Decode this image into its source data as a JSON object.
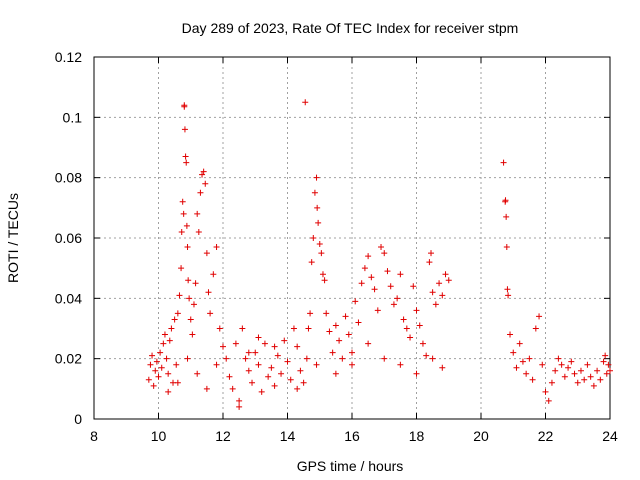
{
  "chart_data": {
    "type": "scatter",
    "title": "Day 289 of 2023, Rate Of TEC Index for receiver stpm",
    "xlabel": "GPS time / hours",
    "ylabel": "ROTI / TECUs",
    "xlim": [
      8,
      24
    ],
    "ylim": [
      0,
      0.12
    ],
    "xticks": [
      "8",
      "10",
      "12",
      "14",
      "16",
      "18",
      "20",
      "22",
      "24"
    ],
    "yticks": [
      "0",
      "0.02",
      "0.04",
      "0.06",
      "0.08",
      "0.1",
      "0.12"
    ],
    "grid": true,
    "marker": "+",
    "color": "#e00000",
    "series": [
      {
        "name": "ROTI",
        "points": [
          [
            9.7,
            0.013
          ],
          [
            9.75,
            0.018
          ],
          [
            9.8,
            0.021
          ],
          [
            9.85,
            0.011
          ],
          [
            9.9,
            0.016
          ],
          [
            9.95,
            0.019
          ],
          [
            10.0,
            0.014
          ],
          [
            10.05,
            0.022
          ],
          [
            10.1,
            0.017
          ],
          [
            10.15,
            0.025
          ],
          [
            10.2,
            0.028
          ],
          [
            10.25,
            0.02
          ],
          [
            10.3,
            0.015
          ],
          [
            10.35,
            0.026
          ],
          [
            10.4,
            0.03
          ],
          [
            10.45,
            0.012
          ],
          [
            10.5,
            0.033
          ],
          [
            10.55,
            0.018
          ],
          [
            10.6,
            0.035
          ],
          [
            10.65,
            0.041
          ],
          [
            10.7,
            0.05
          ],
          [
            10.72,
            0.062
          ],
          [
            10.75,
            0.072
          ],
          [
            10.78,
            0.068
          ],
          [
            10.8,
            0.104
          ],
          [
            10.8,
            0.1035
          ],
          [
            10.82,
            0.096
          ],
          [
            10.84,
            0.087
          ],
          [
            10.86,
            0.085
          ],
          [
            10.88,
            0.064
          ],
          [
            10.9,
            0.057
          ],
          [
            10.92,
            0.046
          ],
          [
            10.95,
            0.04
          ],
          [
            11.0,
            0.033
          ],
          [
            11.05,
            0.028
          ],
          [
            11.1,
            0.038
          ],
          [
            11.15,
            0.045
          ],
          [
            11.2,
            0.068
          ],
          [
            11.25,
            0.062
          ],
          [
            11.3,
            0.075
          ],
          [
            11.35,
            0.081
          ],
          [
            11.4,
            0.082
          ],
          [
            11.45,
            0.078
          ],
          [
            11.5,
            0.055
          ],
          [
            11.55,
            0.042
          ],
          [
            11.6,
            0.035
          ],
          [
            11.7,
            0.048
          ],
          [
            11.8,
            0.057
          ],
          [
            11.9,
            0.03
          ],
          [
            12.0,
            0.024
          ],
          [
            10.3,
            0.009
          ],
          [
            10.6,
            0.012
          ],
          [
            10.9,
            0.02
          ],
          [
            11.2,
            0.015
          ],
          [
            11.5,
            0.01
          ],
          [
            11.8,
            0.018
          ],
          [
            12.1,
            0.02
          ],
          [
            12.2,
            0.014
          ],
          [
            12.3,
            0.01
          ],
          [
            12.4,
            0.025
          ],
          [
            12.5,
            0.006
          ],
          [
            12.5,
            0.004
          ],
          [
            12.6,
            0.03
          ],
          [
            12.7,
            0.02
          ],
          [
            12.8,
            0.016
          ],
          [
            12.9,
            0.012
          ],
          [
            13.0,
            0.022
          ],
          [
            13.1,
            0.018
          ],
          [
            13.2,
            0.009
          ],
          [
            13.3,
            0.025
          ],
          [
            13.4,
            0.014
          ],
          [
            13.5,
            0.017
          ],
          [
            13.6,
            0.011
          ],
          [
            13.7,
            0.021
          ],
          [
            13.8,
            0.015
          ],
          [
            13.9,
            0.026
          ],
          [
            14.0,
            0.019
          ],
          [
            14.1,
            0.013
          ],
          [
            14.2,
            0.03
          ],
          [
            14.3,
            0.024
          ],
          [
            14.4,
            0.016
          ],
          [
            14.5,
            0.012
          ],
          [
            14.55,
            0.105
          ],
          [
            14.6,
            0.02
          ],
          [
            14.65,
            0.03
          ],
          [
            14.7,
            0.035
          ],
          [
            14.75,
            0.052
          ],
          [
            14.8,
            0.06
          ],
          [
            14.85,
            0.075
          ],
          [
            14.9,
            0.08
          ],
          [
            14.92,
            0.07
          ],
          [
            14.95,
            0.065
          ],
          [
            15.0,
            0.058
          ],
          [
            15.05,
            0.055
          ],
          [
            15.1,
            0.048
          ],
          [
            15.15,
            0.046
          ],
          [
            15.2,
            0.035
          ],
          [
            15.3,
            0.029
          ],
          [
            15.4,
            0.022
          ],
          [
            15.5,
            0.031
          ],
          [
            15.6,
            0.026
          ],
          [
            15.7,
            0.02
          ],
          [
            15.8,
            0.034
          ],
          [
            15.9,
            0.028
          ],
          [
            16.0,
            0.018
          ],
          [
            16.1,
            0.039
          ],
          [
            16.2,
            0.032
          ],
          [
            16.3,
            0.045
          ],
          [
            16.4,
            0.05
          ],
          [
            16.5,
            0.054
          ],
          [
            16.6,
            0.047
          ],
          [
            16.7,
            0.043
          ],
          [
            16.8,
            0.036
          ],
          [
            16.9,
            0.057
          ],
          [
            17.0,
            0.055
          ],
          [
            17.1,
            0.049
          ],
          [
            17.2,
            0.044
          ],
          [
            17.3,
            0.038
          ],
          [
            17.4,
            0.04
          ],
          [
            17.5,
            0.048
          ],
          [
            17.6,
            0.033
          ],
          [
            17.7,
            0.03
          ],
          [
            17.8,
            0.027
          ],
          [
            17.9,
            0.044
          ],
          [
            18.0,
            0.036
          ],
          [
            18.1,
            0.031
          ],
          [
            18.2,
            0.025
          ],
          [
            18.3,
            0.021
          ],
          [
            18.4,
            0.052
          ],
          [
            18.45,
            0.055
          ],
          [
            18.5,
            0.042
          ],
          [
            18.6,
            0.038
          ],
          [
            18.7,
            0.045
          ],
          [
            18.8,
            0.041
          ],
          [
            18.9,
            0.048
          ],
          [
            19.0,
            0.046
          ],
          [
            15.5,
            0.015
          ],
          [
            16.0,
            0.022
          ],
          [
            16.5,
            0.025
          ],
          [
            17.0,
            0.02
          ],
          [
            17.5,
            0.018
          ],
          [
            18.0,
            0.015
          ],
          [
            18.5,
            0.02
          ],
          [
            18.8,
            0.017
          ],
          [
            20.7,
            0.085
          ],
          [
            20.75,
            0.072
          ],
          [
            20.76,
            0.0725
          ],
          [
            20.78,
            0.067
          ],
          [
            20.8,
            0.057
          ],
          [
            20.82,
            0.043
          ],
          [
            20.84,
            0.041
          ],
          [
            20.9,
            0.028
          ],
          [
            21.0,
            0.022
          ],
          [
            21.1,
            0.017
          ],
          [
            21.2,
            0.025
          ],
          [
            21.3,
            0.019
          ],
          [
            21.4,
            0.015
          ],
          [
            21.5,
            0.02
          ],
          [
            21.6,
            0.013
          ],
          [
            21.7,
            0.03
          ],
          [
            21.8,
            0.034
          ],
          [
            21.9,
            0.018
          ],
          [
            22.0,
            0.009
          ],
          [
            22.1,
            0.006
          ],
          [
            22.2,
            0.012
          ],
          [
            22.3,
            0.016
          ],
          [
            22.4,
            0.02
          ],
          [
            22.5,
            0.018
          ],
          [
            22.6,
            0.014
          ],
          [
            22.7,
            0.017
          ],
          [
            22.8,
            0.019
          ],
          [
            22.9,
            0.015
          ],
          [
            23.0,
            0.012
          ],
          [
            23.1,
            0.016
          ],
          [
            23.2,
            0.013
          ],
          [
            23.3,
            0.018
          ],
          [
            23.4,
            0.014
          ],
          [
            23.5,
            0.011
          ],
          [
            23.6,
            0.016
          ],
          [
            23.7,
            0.013
          ],
          [
            23.8,
            0.019
          ],
          [
            23.85,
            0.021
          ],
          [
            23.9,
            0.015
          ],
          [
            23.95,
            0.018
          ],
          [
            24.0,
            0.016
          ],
          [
            12.8,
            0.022
          ],
          [
            13.1,
            0.027
          ],
          [
            13.6,
            0.024
          ],
          [
            14.3,
            0.01
          ],
          [
            14.9,
            0.018
          ]
        ]
      }
    ]
  }
}
